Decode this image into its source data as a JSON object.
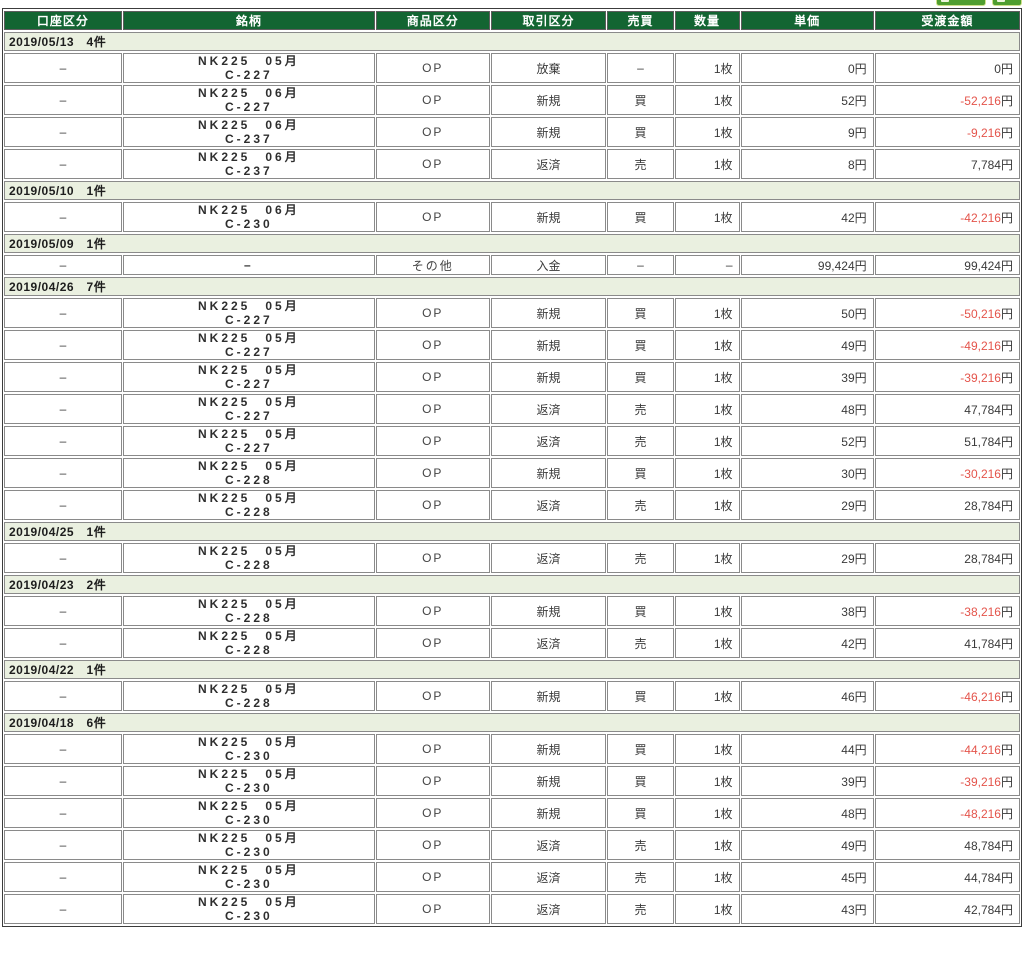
{
  "toolbar": {
    "buttons": [
      {
        "id": "toolbar-button-1",
        "icon": "magnifier-icon"
      },
      {
        "id": "toolbar-button-2",
        "icon": "document-icon"
      }
    ]
  },
  "colors": {
    "header_bg": "#136532",
    "date_row_bg": "#eaf0e0",
    "negative_amount": "#e4544b",
    "button_green": "#4f9e2f"
  },
  "table": {
    "columns": [
      "口座区分",
      "銘柄",
      "商品区分",
      "取引区分",
      "売買",
      "数量",
      "単価",
      "受渡金額"
    ],
    "groups": [
      {
        "date": "2019/05/13",
        "count": "4件",
        "rows": [
          {
            "account": "–",
            "name1": "NK225　05月",
            "name2": "C-227",
            "product": "OP",
            "trade": "放棄",
            "side": "–",
            "qty": "1枚",
            "price": "0円",
            "amount": "0",
            "unit": "円",
            "negative": false
          },
          {
            "account": "–",
            "name1": "NK225　06月",
            "name2": "C-227",
            "product": "OP",
            "trade": "新規",
            "side": "買",
            "qty": "1枚",
            "price": "52円",
            "amount": "-52,216",
            "unit": "円",
            "negative": true
          },
          {
            "account": "–",
            "name1": "NK225　06月",
            "name2": "C-237",
            "product": "OP",
            "trade": "新規",
            "side": "買",
            "qty": "1枚",
            "price": "9円",
            "amount": "-9,216",
            "unit": "円",
            "negative": true
          },
          {
            "account": "–",
            "name1": "NK225　06月",
            "name2": "C-237",
            "product": "OP",
            "trade": "返済",
            "side": "売",
            "qty": "1枚",
            "price": "8円",
            "amount": "7,784",
            "unit": "円",
            "negative": false
          }
        ]
      },
      {
        "date": "2019/05/10",
        "count": "1件",
        "rows": [
          {
            "account": "–",
            "name1": "NK225　06月",
            "name2": "C-230",
            "product": "OP",
            "trade": "新規",
            "side": "買",
            "qty": "1枚",
            "price": "42円",
            "amount": "-42,216",
            "unit": "円",
            "negative": true
          }
        ]
      },
      {
        "date": "2019/05/09",
        "count": "1件",
        "rows": [
          {
            "account": "–",
            "name1": "–",
            "name2": "",
            "product": "その他",
            "trade": "入金",
            "side": "–",
            "qty": "–",
            "price": "99,424円",
            "amount": "99,424",
            "unit": "円",
            "negative": false
          }
        ]
      },
      {
        "date": "2019/04/26",
        "count": "7件",
        "rows": [
          {
            "account": "–",
            "name1": "NK225　05月",
            "name2": "C-227",
            "product": "OP",
            "trade": "新規",
            "side": "買",
            "qty": "1枚",
            "price": "50円",
            "amount": "-50,216",
            "unit": "円",
            "negative": true
          },
          {
            "account": "–",
            "name1": "NK225　05月",
            "name2": "C-227",
            "product": "OP",
            "trade": "新規",
            "side": "買",
            "qty": "1枚",
            "price": "49円",
            "amount": "-49,216",
            "unit": "円",
            "negative": true
          },
          {
            "account": "–",
            "name1": "NK225　05月",
            "name2": "C-227",
            "product": "OP",
            "trade": "新規",
            "side": "買",
            "qty": "1枚",
            "price": "39円",
            "amount": "-39,216",
            "unit": "円",
            "negative": true
          },
          {
            "account": "–",
            "name1": "NK225　05月",
            "name2": "C-227",
            "product": "OP",
            "trade": "返済",
            "side": "売",
            "qty": "1枚",
            "price": "48円",
            "amount": "47,784",
            "unit": "円",
            "negative": false
          },
          {
            "account": "–",
            "name1": "NK225　05月",
            "name2": "C-227",
            "product": "OP",
            "trade": "返済",
            "side": "売",
            "qty": "1枚",
            "price": "52円",
            "amount": "51,784",
            "unit": "円",
            "negative": false
          },
          {
            "account": "–",
            "name1": "NK225　05月",
            "name2": "C-228",
            "product": "OP",
            "trade": "新規",
            "side": "買",
            "qty": "1枚",
            "price": "30円",
            "amount": "-30,216",
            "unit": "円",
            "negative": true
          },
          {
            "account": "–",
            "name1": "NK225　05月",
            "name2": "C-228",
            "product": "OP",
            "trade": "返済",
            "side": "売",
            "qty": "1枚",
            "price": "29円",
            "amount": "28,784",
            "unit": "円",
            "negative": false
          }
        ]
      },
      {
        "date": "2019/04/25",
        "count": "1件",
        "rows": [
          {
            "account": "–",
            "name1": "NK225　05月",
            "name2": "C-228",
            "product": "OP",
            "trade": "返済",
            "side": "売",
            "qty": "1枚",
            "price": "29円",
            "amount": "28,784",
            "unit": "円",
            "negative": false
          }
        ]
      },
      {
        "date": "2019/04/23",
        "count": "2件",
        "rows": [
          {
            "account": "–",
            "name1": "NK225　05月",
            "name2": "C-228",
            "product": "OP",
            "trade": "新規",
            "side": "買",
            "qty": "1枚",
            "price": "38円",
            "amount": "-38,216",
            "unit": "円",
            "negative": true
          },
          {
            "account": "–",
            "name1": "NK225　05月",
            "name2": "C-228",
            "product": "OP",
            "trade": "返済",
            "side": "売",
            "qty": "1枚",
            "price": "42円",
            "amount": "41,784",
            "unit": "円",
            "negative": false
          }
        ]
      },
      {
        "date": "2019/04/22",
        "count": "1件",
        "rows": [
          {
            "account": "–",
            "name1": "NK225　05月",
            "name2": "C-228",
            "product": "OP",
            "trade": "新規",
            "side": "買",
            "qty": "1枚",
            "price": "46円",
            "amount": "-46,216",
            "unit": "円",
            "negative": true
          }
        ]
      },
      {
        "date": "2019/04/18",
        "count": "6件",
        "rows": [
          {
            "account": "–",
            "name1": "NK225　05月",
            "name2": "C-230",
            "product": "OP",
            "trade": "新規",
            "side": "買",
            "qty": "1枚",
            "price": "44円",
            "amount": "-44,216",
            "unit": "円",
            "negative": true
          },
          {
            "account": "–",
            "name1": "NK225　05月",
            "name2": "C-230",
            "product": "OP",
            "trade": "新規",
            "side": "買",
            "qty": "1枚",
            "price": "39円",
            "amount": "-39,216",
            "unit": "円",
            "negative": true
          },
          {
            "account": "–",
            "name1": "NK225　05月",
            "name2": "C-230",
            "product": "OP",
            "trade": "新規",
            "side": "買",
            "qty": "1枚",
            "price": "48円",
            "amount": "-48,216",
            "unit": "円",
            "negative": true
          },
          {
            "account": "–",
            "name1": "NK225　05月",
            "name2": "C-230",
            "product": "OP",
            "trade": "返済",
            "side": "売",
            "qty": "1枚",
            "price": "49円",
            "amount": "48,784",
            "unit": "円",
            "negative": false
          },
          {
            "account": "–",
            "name1": "NK225　05月",
            "name2": "C-230",
            "product": "OP",
            "trade": "返済",
            "side": "売",
            "qty": "1枚",
            "price": "45円",
            "amount": "44,784",
            "unit": "円",
            "negative": false
          },
          {
            "account": "–",
            "name1": "NK225　05月",
            "name2": "C-230",
            "product": "OP",
            "trade": "返済",
            "side": "売",
            "qty": "1枚",
            "price": "43円",
            "amount": "42,784",
            "unit": "円",
            "negative": false
          }
        ]
      }
    ]
  }
}
